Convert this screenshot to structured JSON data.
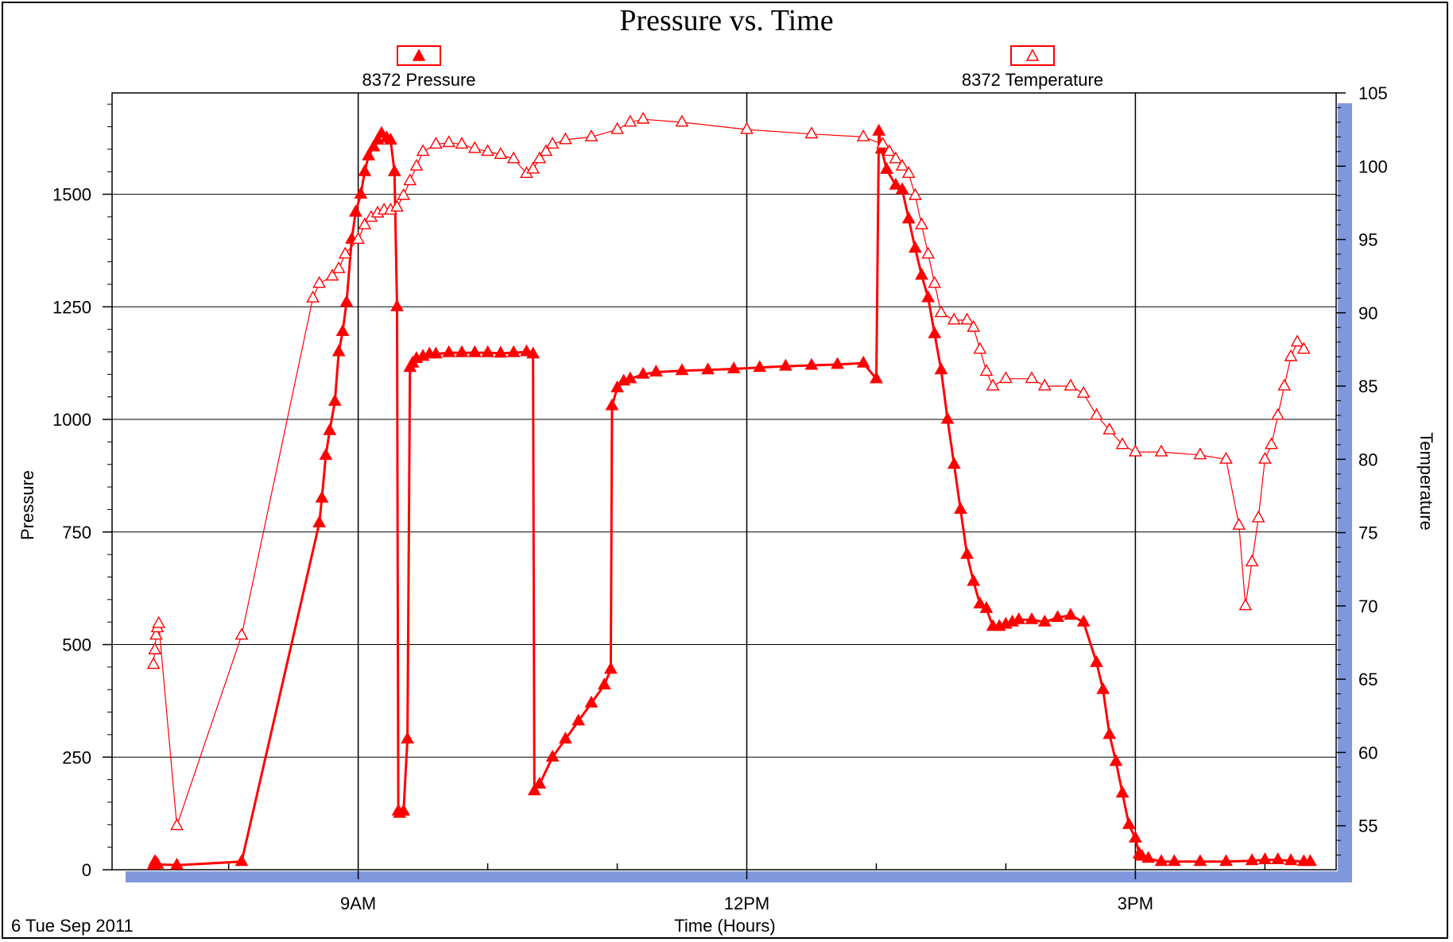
{
  "chart_data": {
    "type": "line",
    "title": "Pressure vs. Time",
    "xlabel": "Time (Hours)",
    "ylabel": "Pressure",
    "y2label": "Temperature",
    "date_label": "6 Tue Sep 2011",
    "x_ticks": [
      "9AM",
      "12PM",
      "3PM"
    ],
    "xlim_hours": [
      7.1,
      16.55
    ],
    "ylim": [
      0,
      1725
    ],
    "y2lim": [
      52,
      105
    ],
    "y_ticks": [
      0,
      250,
      500,
      750,
      1000,
      1250,
      1500
    ],
    "y2_ticks": [
      55,
      60,
      65,
      70,
      75,
      80,
      85,
      90,
      95,
      100,
      105
    ],
    "grid": true,
    "legend_placement": "top",
    "colors": {
      "series": "#ff0000",
      "axis_band": "#7f97dd",
      "grid": "#000000"
    },
    "series": [
      {
        "name": "8372 Pressure",
        "axis": "left",
        "marker": "filled-triangle",
        "x": [
          7.42,
          7.43,
          7.44,
          7.45,
          7.6,
          8.1,
          8.7,
          8.72,
          8.75,
          8.78,
          8.82,
          8.85,
          8.88,
          8.91,
          8.95,
          8.98,
          9.02,
          9.05,
          9.08,
          9.12,
          9.15,
          9.18,
          9.22,
          9.25,
          9.28,
          9.3,
          9.31,
          9.32,
          9.35,
          9.38,
          9.4,
          9.42,
          9.45,
          9.5,
          9.55,
          9.6,
          9.7,
          9.8,
          9.9,
          10.0,
          10.1,
          10.2,
          10.3,
          10.35,
          10.36,
          10.4,
          10.5,
          10.6,
          10.7,
          10.8,
          10.9,
          10.95,
          10.96,
          11.0,
          11.05,
          11.1,
          11.2,
          11.3,
          11.5,
          11.7,
          11.9,
          12.1,
          12.3,
          12.5,
          12.7,
          12.9,
          13.0,
          13.02,
          13.04,
          13.08,
          13.15,
          13.2,
          13.25,
          13.3,
          13.35,
          13.4,
          13.45,
          13.5,
          13.55,
          13.6,
          13.65,
          13.7,
          13.75,
          13.8,
          13.85,
          13.9,
          13.95,
          14.0,
          14.05,
          14.1,
          14.2,
          14.3,
          14.4,
          14.5,
          14.6,
          14.7,
          14.75,
          14.8,
          14.85,
          14.9,
          14.95,
          15.0,
          15.03,
          15.05,
          15.1,
          15.2,
          15.3,
          15.5,
          15.7,
          15.9,
          16.0,
          16.1,
          16.2,
          16.3,
          16.35
        ],
        "values": [
          10,
          18,
          15,
          12,
          10,
          18,
          770,
          825,
          920,
          975,
          1040,
          1150,
          1195,
          1260,
          1400,
          1460,
          1500,
          1550,
          1585,
          1605,
          1620,
          1635,
          1625,
          1620,
          1550,
          1250,
          130,
          125,
          130,
          290,
          1115,
          1125,
          1135,
          1140,
          1145,
          1145,
          1148,
          1148,
          1148,
          1148,
          1147,
          1148,
          1150,
          1145,
          175,
          190,
          250,
          290,
          330,
          370,
          410,
          445,
          1030,
          1070,
          1085,
          1090,
          1100,
          1105,
          1108,
          1110,
          1112,
          1115,
          1118,
          1120,
          1122,
          1125,
          1090,
          1640,
          1600,
          1555,
          1520,
          1510,
          1445,
          1380,
          1320,
          1270,
          1190,
          1110,
          1000,
          900,
          800,
          700,
          640,
          590,
          580,
          540,
          540,
          545,
          550,
          555,
          555,
          550,
          560,
          565,
          550,
          460,
          400,
          300,
          240,
          170,
          100,
          70,
          35,
          30,
          25,
          18,
          18,
          18,
          18,
          20,
          22,
          22,
          20,
          18,
          18
        ]
      },
      {
        "name": "8372 Temperature",
        "axis": "right",
        "marker": "open-triangle",
        "x": [
          7.42,
          7.43,
          7.44,
          7.45,
          7.46,
          7.6,
          8.1,
          8.65,
          8.7,
          8.8,
          8.85,
          8.9,
          9.0,
          9.05,
          9.1,
          9.15,
          9.2,
          9.25,
          9.3,
          9.35,
          9.4,
          9.45,
          9.5,
          9.6,
          9.7,
          9.8,
          9.9,
          10.0,
          10.1,
          10.2,
          10.3,
          10.35,
          10.4,
          10.45,
          10.5,
          10.6,
          10.8,
          11.0,
          11.1,
          11.2,
          11.5,
          12.0,
          12.5,
          12.9,
          13.05,
          13.1,
          13.15,
          13.2,
          13.25,
          13.3,
          13.35,
          13.4,
          13.45,
          13.5,
          13.6,
          13.7,
          13.75,
          13.8,
          13.85,
          13.9,
          14.0,
          14.2,
          14.3,
          14.5,
          14.6,
          14.7,
          14.8,
          14.9,
          15.0,
          15.2,
          15.5,
          15.7,
          15.8,
          15.85,
          15.9,
          15.95,
          16.0,
          16.05,
          16.1,
          16.15,
          16.2,
          16.25,
          16.3
        ],
        "values": [
          66,
          67,
          68,
          68.5,
          68.8,
          55,
          68,
          91,
          92,
          92.5,
          93,
          94,
          95,
          96,
          96.5,
          96.8,
          97,
          97,
          97.2,
          98,
          99,
          100,
          101,
          101.5,
          101.6,
          101.5,
          101.2,
          101,
          100.8,
          100.5,
          99.5,
          99.8,
          100.5,
          101,
          101.5,
          101.8,
          102,
          102.5,
          103,
          103.2,
          103,
          102.5,
          102.2,
          102,
          101.5,
          101,
          100.5,
          100,
          99.5,
          98,
          96,
          94,
          92,
          90,
          89.5,
          89.5,
          89,
          87.5,
          86,
          85,
          85.5,
          85.5,
          85,
          85,
          84.5,
          83,
          82,
          81,
          80.5,
          80.5,
          80.3,
          80,
          75.5,
          70,
          73,
          76,
          80,
          81,
          83,
          85,
          87,
          88,
          87.5
        ]
      }
    ]
  }
}
